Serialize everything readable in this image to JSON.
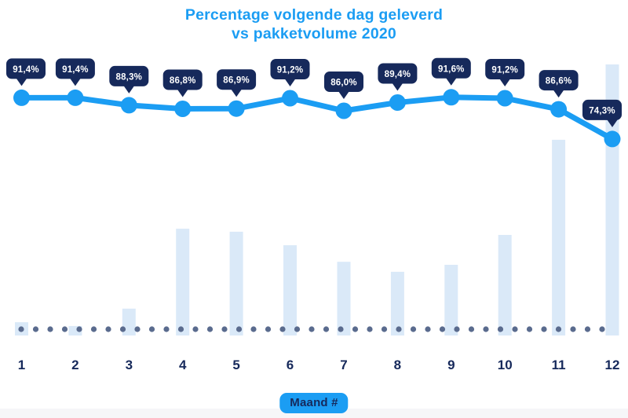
{
  "title": {
    "line1": "Percentage volgende dag geleverd",
    "line2": "vs pakketvolume 2020"
  },
  "x_axis": {
    "badge_label": "Maand #",
    "ticks": [
      "1",
      "2",
      "3",
      "4",
      "5",
      "6",
      "7",
      "8",
      "9",
      "10",
      "11",
      "12"
    ]
  },
  "colors": {
    "accent_blue": "#1b9df3",
    "navy": "#16295b",
    "bar_light_blue": "#dae9f8",
    "baseline_dot": "#5a6b8e",
    "tooltip_bg": "#16295b",
    "tooltip_text": "#ffffff",
    "background": "#ffffff",
    "footer_strip": "#f6f6f8"
  },
  "chart_data": {
    "type": "line+bar combo",
    "title": "Percentage volgende dag geleverd vs pakketvolume 2020",
    "categories": [
      "1",
      "2",
      "3",
      "4",
      "5",
      "6",
      "7",
      "8",
      "9",
      "10",
      "11",
      "12"
    ],
    "xlabel": "Maand #",
    "legend_position": "none",
    "grid": false,
    "y_axis": {
      "visible": false
    },
    "baseline": {
      "style": "dotted"
    },
    "series": [
      {
        "name": "Percentage volgende dag geleverd",
        "type": "line",
        "unit": "%",
        "values": [
          91.4,
          91.4,
          88.3,
          86.8,
          86.9,
          91.2,
          86.0,
          89.4,
          91.6,
          91.2,
          86.6,
          74.3
        ],
        "point_labels": [
          "91,4%",
          "91,4%",
          "88,3%",
          "86,8%",
          "86,9%",
          "91,2%",
          "86,0%",
          "89,4%",
          "91,6%",
          "91,2%",
          "86,6%",
          "74,3%"
        ]
      },
      {
        "name": "Pakketvolume 2020",
        "type": "bar",
        "unit": "relative index (no value axis shown; estimated from bar heights, max = 100)",
        "values": [
          4.9,
          3.5,
          9.9,
          39.4,
          38.3,
          33.3,
          27.2,
          23.5,
          26.1,
          37.1,
          72.2,
          100
        ]
      }
    ]
  }
}
